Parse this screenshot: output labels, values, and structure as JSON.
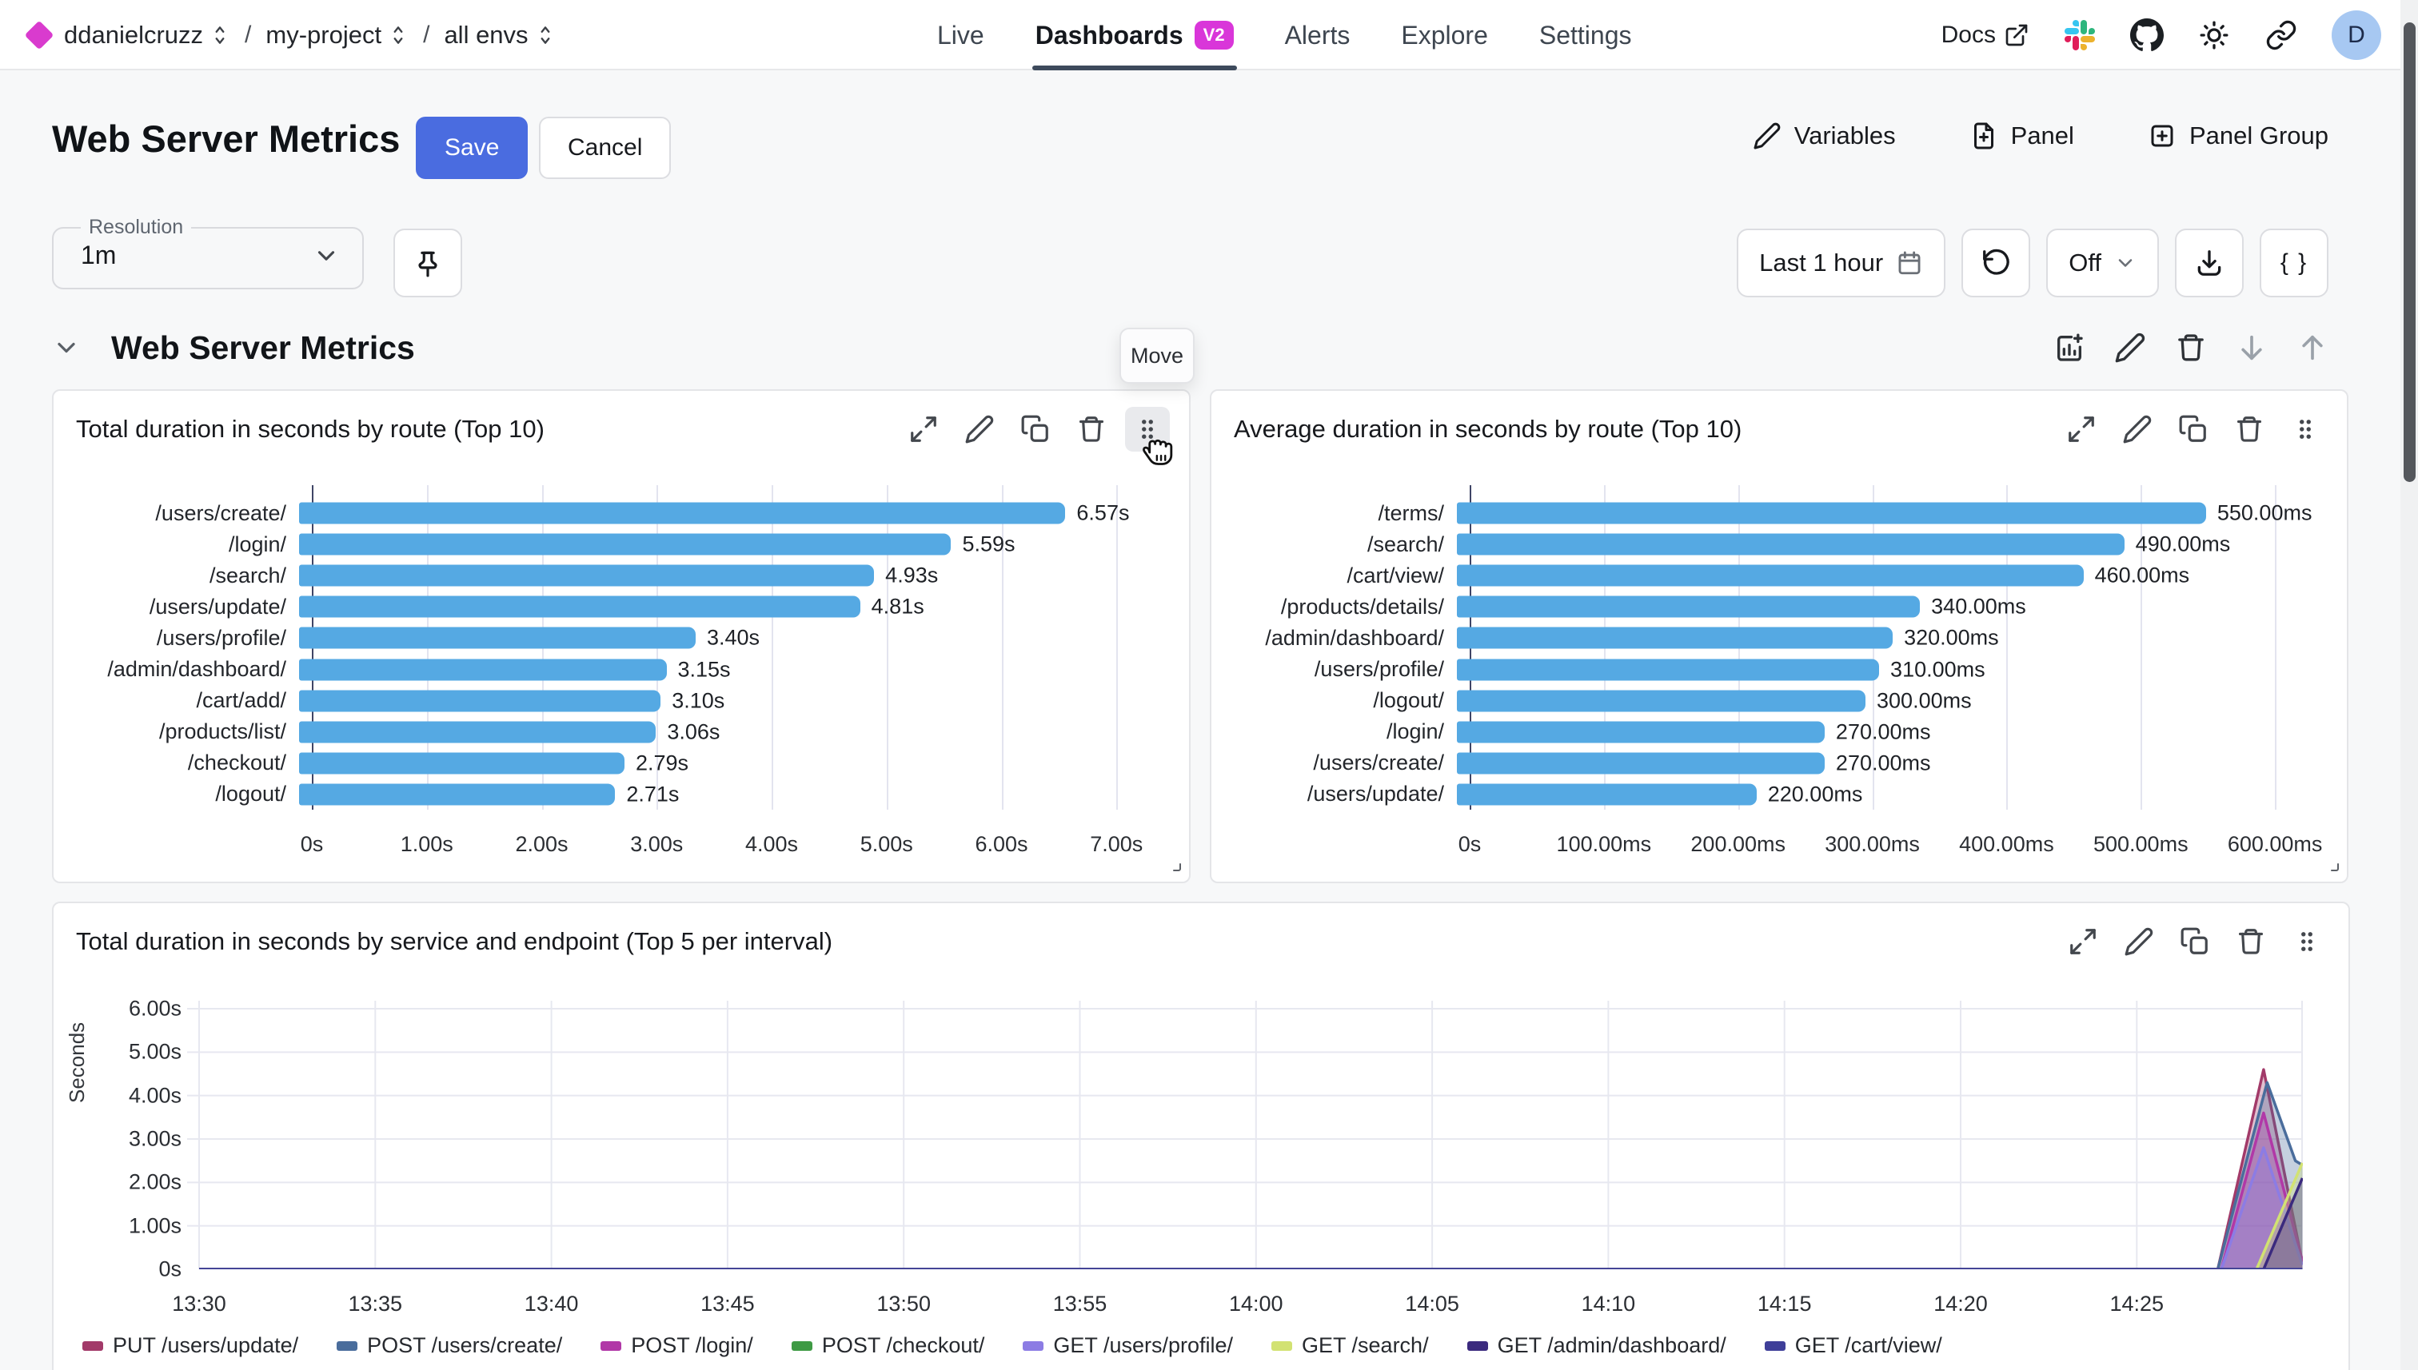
{
  "nav": {
    "org": "ddanielcruzz",
    "project": "my-project",
    "env": "all envs",
    "separator": "/",
    "tabs": [
      {
        "label": "Live"
      },
      {
        "label": "Dashboards",
        "badge": "V2"
      },
      {
        "label": "Alerts"
      },
      {
        "label": "Explore"
      },
      {
        "label": "Settings"
      }
    ],
    "docs": "Docs",
    "avatar": "D"
  },
  "header": {
    "title": "Web Server Metrics",
    "save": "Save",
    "cancel": "Cancel",
    "variables": "Variables",
    "panel": "Panel",
    "panel_group": "Panel Group"
  },
  "toolbar": {
    "resolution_label": "Resolution",
    "resolution_value": "1m",
    "time_range": "Last 1 hour",
    "refresh_mode": "Off",
    "code_button": "{ }"
  },
  "section": {
    "title": "Web Server Metrics",
    "move_tooltip": "Move"
  },
  "chart_data": [
    {
      "type": "bar",
      "orientation": "horizontal",
      "title": "Total duration in seconds by route (Top 10)",
      "unit": "s",
      "categories": [
        "/users/create/",
        "/login/",
        "/search/",
        "/users/update/",
        "/users/profile/",
        "/admin/dashboard/",
        "/cart/add/",
        "/products/list/",
        "/checkout/",
        "/logout/"
      ],
      "values": [
        6.57,
        5.59,
        4.93,
        4.81,
        3.4,
        3.15,
        3.1,
        3.06,
        2.79,
        2.71
      ],
      "value_labels": [
        "6.57s",
        "5.59s",
        "4.93s",
        "4.81s",
        "3.40s",
        "3.15s",
        "3.10s",
        "3.06s",
        "2.79s",
        "2.71s"
      ],
      "xmax": 7.52,
      "xticks": [
        {
          "v": 0,
          "label": "0s"
        },
        {
          "v": 1,
          "label": "1.00s"
        },
        {
          "v": 2,
          "label": "2.00s"
        },
        {
          "v": 3,
          "label": "3.00s"
        },
        {
          "v": 4,
          "label": "4.00s"
        },
        {
          "v": 5,
          "label": "5.00s"
        },
        {
          "v": 6,
          "label": "6.00s"
        },
        {
          "v": 7,
          "label": "7.00s"
        }
      ],
      "bar_color": "#55a9e3",
      "grid": true
    },
    {
      "type": "bar",
      "orientation": "horizontal",
      "title": "Average duration in seconds by route (Top 10)",
      "unit": "ms",
      "categories": [
        "/terms/",
        "/search/",
        "/cart/view/",
        "/products/details/",
        "/admin/dashboard/",
        "/users/profile/",
        "/logout/",
        "/login/",
        "/users/create/",
        "/users/update/"
      ],
      "values": [
        550,
        490,
        460,
        340,
        320,
        310,
        300,
        270,
        270,
        220
      ],
      "value_labels": [
        "550.00ms",
        "490.00ms",
        "460.00ms",
        "340.00ms",
        "320.00ms",
        "310.00ms",
        "300.00ms",
        "270.00ms",
        "270.00ms",
        "220.00ms"
      ],
      "xmax": 644,
      "xticks": [
        {
          "v": 0,
          "label": "0s"
        },
        {
          "v": 100,
          "label": "100.00ms"
        },
        {
          "v": 200,
          "label": "200.00ms"
        },
        {
          "v": 300,
          "label": "300.00ms"
        },
        {
          "v": 400,
          "label": "400.00ms"
        },
        {
          "v": 500,
          "label": "500.00ms"
        },
        {
          "v": 600,
          "label": "600.00ms"
        }
      ],
      "bar_color": "#55a9e3",
      "grid": true
    },
    {
      "type": "area",
      "title": "Total duration in seconds by service and endpoint (Top 5 per interval)",
      "ylabel": "Seconds",
      "ylim": [
        0,
        6.2
      ],
      "yticks": [
        {
          "v": 0,
          "label": "0s"
        },
        {
          "v": 1,
          "label": "1.00s"
        },
        {
          "v": 2,
          "label": "2.00s"
        },
        {
          "v": 3,
          "label": "3.00s"
        },
        {
          "v": 4,
          "label": "4.00s"
        },
        {
          "v": 5,
          "label": "5.00s"
        },
        {
          "v": 6,
          "label": "6.00s"
        }
      ],
      "x_minutes_range": [
        0,
        59.7
      ],
      "xticks": [
        {
          "min": 0,
          "label": "13:30"
        },
        {
          "min": 5,
          "label": "13:35"
        },
        {
          "min": 10,
          "label": "13:40"
        },
        {
          "min": 15,
          "label": "13:45"
        },
        {
          "min": 20,
          "label": "13:50"
        },
        {
          "min": 25,
          "label": "13:55"
        },
        {
          "min": 30,
          "label": "14:00"
        },
        {
          "min": 35,
          "label": "14:05"
        },
        {
          "min": 40,
          "label": "14:10"
        },
        {
          "min": 45,
          "label": "14:15"
        },
        {
          "min": 50,
          "label": "14:20"
        },
        {
          "min": 55,
          "label": "14:25"
        }
      ],
      "legend_position": "bottom",
      "series": [
        {
          "name": "PUT /users/update/",
          "color": "#a23a69",
          "points": [
            [
              0,
              0
            ],
            [
              57.3,
              0
            ],
            [
              58.6,
              4.6
            ],
            [
              59.7,
              0.15
            ]
          ]
        },
        {
          "name": "POST /users/create/",
          "color": "#4a6d9c",
          "points": [
            [
              0,
              0
            ],
            [
              57.3,
              0
            ],
            [
              58.7,
              4.3
            ],
            [
              59.5,
              2.5
            ],
            [
              59.7,
              2.4
            ]
          ]
        },
        {
          "name": "POST /login/",
          "color": "#b138a7",
          "points": [
            [
              0,
              0
            ],
            [
              57.4,
              0
            ],
            [
              58.6,
              3.6
            ],
            [
              59.7,
              0.2
            ]
          ]
        },
        {
          "name": "POST /checkout/",
          "color": "#3e9a44",
          "points": [
            [
              0,
              0
            ],
            [
              59.7,
              0
            ]
          ]
        },
        {
          "name": "GET /users/profile/",
          "color": "#8c7ce4",
          "points": [
            [
              0,
              0
            ],
            [
              57.4,
              0
            ],
            [
              58.6,
              2.8
            ],
            [
              59.7,
              0.1
            ]
          ]
        },
        {
          "name": "GET /search/",
          "color": "#d2e272",
          "points": [
            [
              0,
              0
            ],
            [
              58.4,
              0
            ],
            [
              59.7,
              2.45
            ]
          ]
        },
        {
          "name": "GET /admin/dashboard/",
          "color": "#3b2a7e",
          "points": [
            [
              0,
              0
            ],
            [
              58.6,
              0
            ],
            [
              59.7,
              2.1
            ]
          ]
        },
        {
          "name": "GET /cart/view/",
          "color": "#3f3f99",
          "points": [
            [
              0,
              0
            ],
            [
              59.7,
              0
            ]
          ]
        }
      ]
    }
  ]
}
